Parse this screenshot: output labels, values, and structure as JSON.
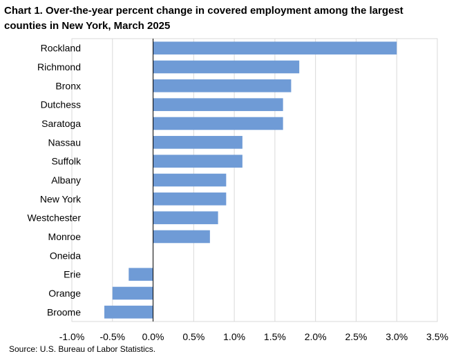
{
  "chart_data": {
    "type": "bar",
    "orientation": "horizontal",
    "title": "Chart 1. Over-the-year percent change in covered employment among the largest counties in New York, March 2025",
    "source": "Source: U.S. Bureau of Labor Statistics.",
    "categories": [
      "Rockland",
      "Richmond",
      "Bronx",
      "Dutchess",
      "Saratoga",
      "Nassau",
      "Suffolk",
      "Albany",
      "New York",
      "Westchester",
      "Monroe",
      "Oneida",
      "Erie",
      "Orange",
      "Broome"
    ],
    "values": [
      3.0,
      1.8,
      1.7,
      1.6,
      1.6,
      1.1,
      1.1,
      0.9,
      0.9,
      0.8,
      0.7,
      0.0,
      -0.3,
      -0.5,
      -0.6
    ],
    "xlim": [
      -1.0,
      3.5
    ],
    "xticks": [
      -1.0,
      -0.5,
      0.0,
      0.5,
      1.0,
      1.5,
      2.0,
      2.5,
      3.0,
      3.5
    ],
    "xtick_labels": [
      "-1.0%",
      "-0.5%",
      "0.0%",
      "0.5%",
      "1.0%",
      "1.5%",
      "2.0%",
      "2.5%",
      "3.0%",
      "3.5%"
    ],
    "bar_color": "#6f9bd6",
    "grid": true,
    "legend": false
  }
}
